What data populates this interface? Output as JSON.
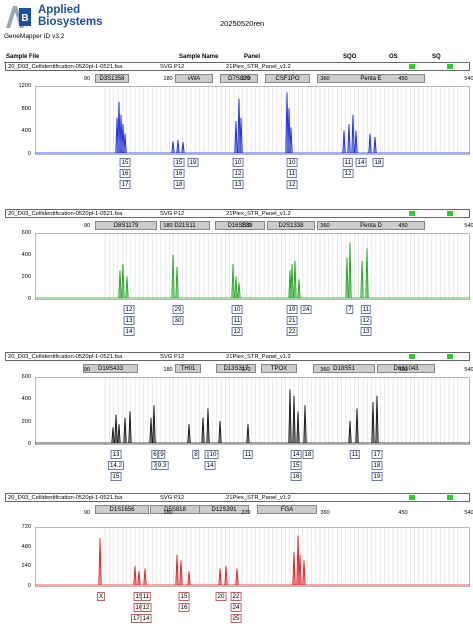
{
  "header": {
    "logo_abbrev": "AB",
    "brand_line1": "Applied",
    "brand_line2": "Biosystems",
    "app_version": "GeneMapper ID v3.2",
    "run_id": "20250520ren",
    "brand_color": "#1e4f9c"
  },
  "columns": [
    "Sample File",
    "Sample Name",
    "Panel",
    "SQO",
    "OS",
    "SQ"
  ],
  "x_ticks": [
    "90",
    "180",
    "270",
    "360",
    "450",
    "540"
  ],
  "panels": [
    {
      "sample_file": "20_D03_Cellidentification-0520pl-1-0521.fsa",
      "sample_name": "SVG P12",
      "panel": "21Plex_STR_Panel_v1.2",
      "color": "#1a2bd6",
      "y_ticks": [
        "1200",
        "800",
        "400",
        "0"
      ],
      "markers": [
        "D3S1358",
        "vWA",
        "D7S820",
        "CSF1PO",
        "Penta E"
      ],
      "alleles": [
        [
          "15",
          "16",
          "17"
        ],
        [
          "15",
          "16",
          "18"
        ],
        [
          "19"
        ],
        [
          "10",
          "12",
          "13"
        ],
        [
          "10",
          "11",
          "12"
        ],
        [
          "11",
          "12"
        ],
        [
          "14"
        ],
        [
          "18"
        ]
      ]
    },
    {
      "sample_file": "20_D03_Cellidentification-0520pl-1-0521.fsa",
      "sample_name": "SVG P12",
      "panel": "21Plex_STR_Panel_v1.2",
      "color": "#22a622",
      "y_ticks": [
        "600",
        "400",
        "200",
        "0"
      ],
      "markers": [
        "D8S1179",
        "D21S11",
        "D16S539",
        "D2S1338",
        "Penta D"
      ],
      "alleles": [
        [
          "12",
          "13",
          "14"
        ],
        [
          "29",
          "30"
        ],
        [
          "10",
          "11",
          "12"
        ],
        [
          "19",
          "21",
          "22"
        ],
        [
          "24"
        ],
        [
          "7"
        ],
        [
          "11",
          "12",
          "13"
        ]
      ]
    },
    {
      "sample_file": "20_D03_Cellidentification-0520pl-1-0521.fsa",
      "sample_name": "SVG P12",
      "panel": "21Plex_STR_Panel_v1.2",
      "color": "#111111",
      "y_ticks": [
        "600",
        "400",
        "200",
        "0"
      ],
      "markers": [
        "D19S433",
        "TH01",
        "D13S317",
        "TPOX",
        "D18S51",
        "D6S1043"
      ],
      "alleles": [
        [
          "13",
          "14.2",
          "15"
        ],
        [
          "6",
          "7"
        ],
        [
          "9",
          "9.3"
        ],
        [
          "8"
        ],
        [
          "13",
          "14"
        ],
        [
          "10"
        ],
        [
          "11"
        ],
        [
          "14",
          "15",
          "16"
        ],
        [
          "18"
        ],
        [
          "11"
        ],
        [
          "17",
          "18",
          "19"
        ]
      ]
    },
    {
      "sample_file": "20_D03_Cellidentification-0520pl-1-0521.fsa",
      "sample_name": "SVG P12",
      "panel": "21Plex_STR_Panel_v1.2",
      "color": "#e02020",
      "y_ticks": [
        "720",
        "480",
        "240",
        "0"
      ],
      "markers": [
        "D1S1656",
        "D5S818",
        "D12S391",
        "FGA"
      ],
      "alleles": [
        [
          "X"
        ],
        [
          "15",
          "16",
          "17.3"
        ],
        [
          "11",
          "12",
          "14"
        ],
        [
          "15",
          "16"
        ],
        [
          "20"
        ],
        [
          "22",
          "24",
          "25"
        ]
      ]
    }
  ]
}
